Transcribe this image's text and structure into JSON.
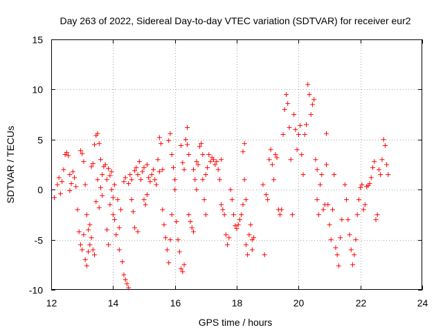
{
  "chart_data": {
    "type": "scatter",
    "title": "Day 263 of 2022, Sidereal Day-to-day VTEC variation (SDTVAR) for receiver eur2",
    "xlabel": "GPS time / hours",
    "ylabel": "SDTVAR / TECUs",
    "xlim": [
      12,
      24
    ],
    "ylim": [
      -10,
      15
    ],
    "xticks": [
      12,
      14,
      16,
      18,
      20,
      22,
      24
    ],
    "yticks": [
      -10,
      -5,
      0,
      5,
      10,
      15
    ],
    "grid": true,
    "marker": "+",
    "color": "#ff0000",
    "series": [
      {
        "name": "SDTVAR",
        "points": [
          [
            12.1,
            -0.8
          ],
          [
            12.2,
            0.5
          ],
          [
            12.25,
            1.2
          ],
          [
            12.3,
            -0.4
          ],
          [
            12.35,
            0.8
          ],
          [
            12.4,
            2.0
          ],
          [
            12.45,
            3.5
          ],
          [
            12.5,
            3.7
          ],
          [
            12.55,
            3.4
          ],
          [
            12.6,
            1.5
          ],
          [
            12.6,
            -0.1
          ],
          [
            12.65,
            0.6
          ],
          [
            12.7,
            1.8
          ],
          [
            12.75,
            1.2
          ],
          [
            12.8,
            0.3
          ],
          [
            12.85,
            -2.0
          ],
          [
            12.9,
            -4.2
          ],
          [
            12.95,
            -5.5
          ],
          [
            12.95,
            3.9
          ],
          [
            13.0,
            3.6
          ],
          [
            13.0,
            -6.0
          ],
          [
            13.05,
            -4.5
          ],
          [
            13.05,
            2.8
          ],
          [
            13.1,
            -7.0
          ],
          [
            13.1,
            0.5
          ],
          [
            13.15,
            -7.6
          ],
          [
            13.15,
            -2.5
          ],
          [
            13.2,
            -6.2
          ],
          [
            13.2,
            -4.0
          ],
          [
            13.25,
            -3.5
          ],
          [
            13.25,
            -5.5
          ],
          [
            13.3,
            2.3
          ],
          [
            13.3,
            -4.8
          ],
          [
            13.35,
            2.6
          ],
          [
            13.35,
            -6.0
          ],
          [
            13.4,
            4.5
          ],
          [
            13.4,
            -6.5
          ],
          [
            13.45,
            5.4
          ],
          [
            13.45,
            -1.2
          ],
          [
            13.5,
            5.6
          ],
          [
            13.5,
            1.0
          ],
          [
            13.55,
            4.6
          ],
          [
            13.55,
            -1.8
          ],
          [
            13.6,
            3.0
          ],
          [
            13.6,
            0.2
          ],
          [
            13.65,
            1.5
          ],
          [
            13.65,
            -0.6
          ],
          [
            13.7,
            2.3
          ],
          [
            13.75,
            2.5
          ],
          [
            13.8,
            1.0
          ],
          [
            13.8,
            -4.0
          ],
          [
            13.85,
            -5.5
          ],
          [
            13.85,
            2.1
          ],
          [
            13.9,
            1.4
          ],
          [
            13.9,
            -1.5
          ],
          [
            13.95,
            0.0
          ],
          [
            13.95,
            1.8
          ],
          [
            14.0,
            -0.8
          ],
          [
            14.0,
            -2.5
          ],
          [
            14.05,
            -3.0
          ],
          [
            14.05,
            0.5
          ],
          [
            14.1,
            -4.5
          ],
          [
            14.15,
            -1.0
          ],
          [
            14.2,
            -6.0
          ],
          [
            14.2,
            -3.8
          ],
          [
            14.25,
            -2.0
          ],
          [
            14.3,
            -7.2
          ],
          [
            14.35,
            0.8
          ],
          [
            14.35,
            -8.5
          ],
          [
            14.4,
            1.2
          ],
          [
            14.4,
            -9.0
          ],
          [
            14.45,
            -9.4
          ],
          [
            14.5,
            -9.8
          ],
          [
            14.5,
            0.6
          ],
          [
            14.55,
            1.5
          ],
          [
            14.6,
            1.0
          ],
          [
            14.6,
            -1.0
          ],
          [
            14.65,
            -2.2
          ],
          [
            14.7,
            -3.8
          ],
          [
            14.7,
            1.9
          ],
          [
            14.75,
            2.2
          ],
          [
            14.8,
            -4.2
          ],
          [
            14.8,
            1.5
          ],
          [
            14.85,
            2.8
          ],
          [
            14.9,
            1.0
          ],
          [
            14.95,
            1.8
          ],
          [
            15.0,
            2.2
          ],
          [
            15.0,
            -1.0
          ],
          [
            15.05,
            -1.5
          ],
          [
            15.1,
            -0.5
          ],
          [
            15.1,
            2.5
          ],
          [
            15.15,
            1.2
          ],
          [
            15.2,
            0.8
          ],
          [
            15.25,
            1.5
          ],
          [
            15.3,
            2.0
          ],
          [
            15.35,
            1.0
          ],
          [
            15.4,
            0.5
          ],
          [
            15.45,
            3.0
          ],
          [
            15.5,
            5.2
          ],
          [
            15.5,
            1.8
          ],
          [
            15.55,
            4.6
          ],
          [
            15.6,
            2.0
          ],
          [
            15.6,
            -2.0
          ],
          [
            15.65,
            -3.5
          ],
          [
            15.7,
            -4.8
          ],
          [
            15.75,
            -6.0
          ],
          [
            15.8,
            -7.3
          ],
          [
            15.8,
            4.9
          ],
          [
            15.85,
            5.6
          ],
          [
            15.85,
            -5.0
          ],
          [
            15.9,
            3.5
          ],
          [
            15.9,
            -2.5
          ],
          [
            15.95,
            2.2
          ],
          [
            16.0,
            1.0
          ],
          [
            16.0,
            0.0
          ],
          [
            16.05,
            -3.2
          ],
          [
            16.1,
            -5.0
          ],
          [
            16.15,
            -6.2
          ],
          [
            16.2,
            -7.9
          ],
          [
            16.2,
            4.4
          ],
          [
            16.25,
            -8.2
          ],
          [
            16.25,
            2.7
          ],
          [
            16.3,
            -7.5
          ],
          [
            16.3,
            2.0
          ],
          [
            16.35,
            5.0
          ],
          [
            16.4,
            6.2
          ],
          [
            16.4,
            4.5
          ],
          [
            16.45,
            -2.5
          ],
          [
            16.45,
            3.5
          ],
          [
            16.5,
            -3.2
          ],
          [
            16.55,
            -3.8
          ],
          [
            16.6,
            -4.2
          ],
          [
            16.6,
            2.0
          ],
          [
            16.65,
            1.0
          ],
          [
            16.7,
            0.0
          ],
          [
            16.7,
            2.8
          ],
          [
            16.75,
            2.5
          ],
          [
            16.8,
            4.3
          ],
          [
            16.85,
            4.6
          ],
          [
            16.9,
            3.5
          ],
          [
            16.9,
            1.0
          ],
          [
            16.95,
            -1.0
          ],
          [
            17.0,
            -2.5
          ],
          [
            17.0,
            1.5
          ],
          [
            17.05,
            2.2
          ],
          [
            17.1,
            3.5
          ],
          [
            17.15,
            2.8
          ],
          [
            17.2,
            3.2
          ],
          [
            17.25,
            3.0
          ],
          [
            17.3,
            2.5
          ],
          [
            17.35,
            2.8
          ],
          [
            17.4,
            2.0
          ],
          [
            17.45,
            1.0
          ],
          [
            17.5,
            3.0
          ],
          [
            17.5,
            -1.5
          ],
          [
            17.55,
            -2.0
          ],
          [
            17.6,
            -2.5
          ],
          [
            17.65,
            -4.5
          ],
          [
            17.7,
            -5.5
          ],
          [
            17.75,
            -4.8
          ],
          [
            17.8,
            0.0
          ],
          [
            17.85,
            -1.0
          ],
          [
            17.9,
            -2.5
          ],
          [
            17.95,
            -3.6
          ],
          [
            18.0,
            -3.9
          ],
          [
            18.05,
            -3.5
          ],
          [
            18.1,
            -3.0
          ],
          [
            18.15,
            -2.5
          ],
          [
            18.2,
            -1.5
          ],
          [
            18.2,
            3.8
          ],
          [
            18.25,
            4.6
          ],
          [
            18.25,
            1.0
          ],
          [
            18.3,
            -5.5
          ],
          [
            18.3,
            -1.0
          ],
          [
            18.35,
            -6.5
          ],
          [
            18.4,
            -4.5
          ],
          [
            18.45,
            -3.5
          ],
          [
            18.5,
            -5.0
          ],
          [
            18.5,
            -6.0
          ],
          [
            18.55,
            -4.8
          ],
          [
            18.85,
            0.5
          ],
          [
            18.9,
            -6.5
          ],
          [
            18.95,
            -0.5
          ],
          [
            19.0,
            -1.0
          ],
          [
            19.05,
            3.0
          ],
          [
            19.1,
            4.0
          ],
          [
            19.15,
            2.5
          ],
          [
            19.2,
            1.0
          ],
          [
            19.25,
            3.5
          ],
          [
            19.3,
            3.2
          ],
          [
            19.35,
            -2.0
          ],
          [
            19.4,
            -2.5
          ],
          [
            19.45,
            -2.0
          ],
          [
            19.5,
            5.5
          ],
          [
            19.55,
            8.0
          ],
          [
            19.6,
            9.5
          ],
          [
            19.65,
            8.6
          ],
          [
            19.7,
            6.2
          ],
          [
            19.75,
            3.0
          ],
          [
            19.8,
            -2.5
          ],
          [
            19.85,
            7.5
          ],
          [
            19.9,
            6.0
          ],
          [
            19.95,
            4.0
          ],
          [
            20.0,
            5.5
          ],
          [
            20.05,
            6.4
          ],
          [
            20.1,
            3.5
          ],
          [
            20.15,
            1.5
          ],
          [
            20.2,
            5.5
          ],
          [
            20.25,
            6.5
          ],
          [
            20.3,
            10.5
          ],
          [
            20.35,
            9.5
          ],
          [
            20.4,
            7.5
          ],
          [
            20.45,
            8.5
          ],
          [
            20.5,
            9.0
          ],
          [
            20.55,
            3.0
          ],
          [
            20.6,
            2.0
          ],
          [
            20.6,
            -1.0
          ],
          [
            20.65,
            -2.5
          ],
          [
            20.7,
            0.5
          ],
          [
            20.75,
            1.5
          ],
          [
            20.8,
            -2.0
          ],
          [
            20.85,
            -1.5
          ],
          [
            20.9,
            5.6
          ],
          [
            20.9,
            2.5
          ],
          [
            20.95,
            -1.5
          ],
          [
            21.0,
            -3.5
          ],
          [
            21.05,
            -5.0
          ],
          [
            21.1,
            -2.0
          ],
          [
            21.15,
            1.5
          ],
          [
            21.2,
            -5.8
          ],
          [
            21.25,
            -6.5
          ],
          [
            21.3,
            -7.6
          ],
          [
            21.35,
            -4.8
          ],
          [
            21.4,
            -3.0
          ],
          [
            21.5,
            0.5
          ],
          [
            21.55,
            -1.0
          ],
          [
            21.6,
            -3.0
          ],
          [
            21.65,
            -4.5
          ],
          [
            21.7,
            -6.0
          ],
          [
            21.75,
            -7.5
          ],
          [
            21.8,
            -6.5
          ],
          [
            21.85,
            -5.0
          ],
          [
            21.9,
            -2.5
          ],
          [
            21.95,
            -1.0
          ],
          [
            22.0,
            0.2
          ],
          [
            22.05,
            0.5
          ],
          [
            22.1,
            -2.0
          ],
          [
            22.15,
            -1.5
          ],
          [
            22.2,
            0.3
          ],
          [
            22.25,
            0.4
          ],
          [
            22.3,
            0.6
          ],
          [
            22.35,
            1.2
          ],
          [
            22.4,
            2.2
          ],
          [
            22.45,
            2.8
          ],
          [
            22.5,
            -3.0
          ],
          [
            22.55,
            -2.5
          ],
          [
            22.6,
            2.0
          ],
          [
            22.65,
            1.5
          ],
          [
            22.7,
            3.0
          ],
          [
            22.75,
            5.0
          ],
          [
            22.8,
            4.4
          ],
          [
            22.85,
            2.5
          ],
          [
            22.9,
            1.5
          ]
        ]
      }
    ]
  }
}
